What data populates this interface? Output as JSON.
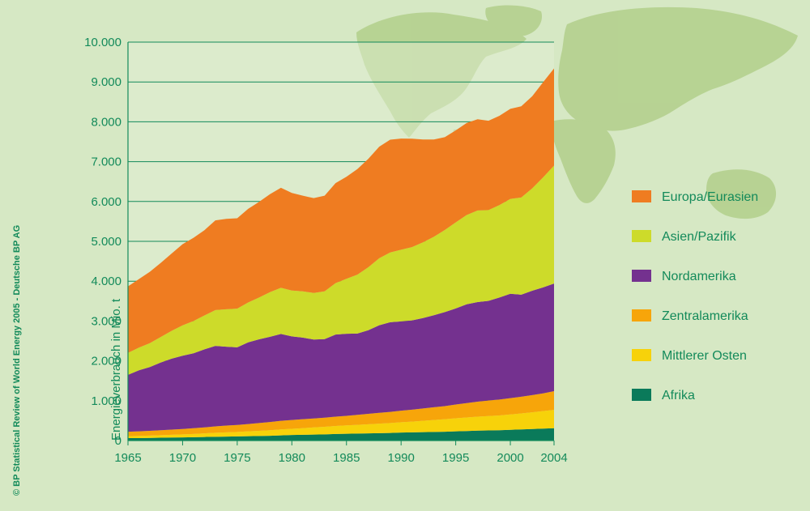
{
  "credit": "© BP Statistical Review of World Energy 2005 - Deutsche BP AG",
  "chart_data": {
    "type": "area",
    "stacked": true,
    "title": "",
    "xlabel": "",
    "ylabel": "Energieverbrauch in Mio. t",
    "xlim": [
      1965,
      2004
    ],
    "ylim": [
      0,
      10000
    ],
    "x_ticks": [
      1965,
      1970,
      1975,
      1980,
      1985,
      1990,
      1995,
      2000,
      2004
    ],
    "x_tick_labels": [
      "1965",
      "1970",
      "1975",
      "1980",
      "1985",
      "1990",
      "1995",
      "2000",
      "2004"
    ],
    "y_ticks": [
      0,
      1000,
      2000,
      3000,
      4000,
      5000,
      6000,
      7000,
      8000,
      9000,
      10000
    ],
    "y_tick_labels": [
      "0",
      "1.000",
      "2.000",
      "3.000",
      "4.000",
      "5.000",
      "6.000",
      "7.000",
      "8.000",
      "9.000",
      "10.000"
    ],
    "grid": "horizontal",
    "legend_position": "right",
    "x": [
      1965,
      1966,
      1967,
      1968,
      1969,
      1970,
      1971,
      1972,
      1973,
      1974,
      1975,
      1976,
      1977,
      1978,
      1979,
      1980,
      1981,
      1982,
      1983,
      1984,
      1985,
      1986,
      1987,
      1988,
      1989,
      1990,
      1991,
      1992,
      1993,
      1994,
      1995,
      1996,
      1997,
      1998,
      1999,
      2000,
      2001,
      2002,
      2003,
      2004
    ],
    "series": [
      {
        "name": "Afrika",
        "color": "#0a7a5a",
        "values": [
          60,
          62,
          65,
          70,
          75,
          80,
          85,
          90,
          95,
          100,
          105,
          110,
          115,
          120,
          130,
          140,
          145,
          150,
          155,
          165,
          170,
          175,
          180,
          185,
          190,
          200,
          205,
          210,
          215,
          220,
          230,
          240,
          250,
          255,
          260,
          270,
          280,
          290,
          300,
          310
        ]
      },
      {
        "name": "Mittlerer Osten",
        "color": "#f7d20a",
        "values": [
          50,
          55,
          60,
          65,
          70,
          75,
          80,
          90,
          100,
          105,
          110,
          120,
          130,
          140,
          150,
          155,
          165,
          180,
          190,
          200,
          210,
          220,
          230,
          240,
          250,
          260,
          270,
          285,
          300,
          315,
          330,
          340,
          350,
          360,
          370,
          385,
          400,
          420,
          440,
          460
        ]
      },
      {
        "name": "Zentralamerika",
        "color": "#f7a50a",
        "values": [
          110,
          115,
          120,
          125,
          130,
          135,
          145,
          150,
          160,
          170,
          175,
          185,
          195,
          205,
          215,
          220,
          225,
          225,
          230,
          235,
          240,
          250,
          260,
          270,
          280,
          290,
          300,
          310,
          320,
          330,
          345,
          360,
          375,
          390,
          400,
          410,
          420,
          430,
          445,
          470
        ]
      },
      {
        "name": "Nordamerika",
        "color": "#74318f",
        "values": [
          1430,
          1530,
          1600,
          1700,
          1780,
          1840,
          1880,
          1960,
          2020,
          1980,
          1950,
          2050,
          2100,
          2140,
          2180,
          2100,
          2050,
          1980,
          1970,
          2060,
          2060,
          2040,
          2100,
          2200,
          2250,
          2240,
          2240,
          2270,
          2310,
          2360,
          2410,
          2480,
          2500,
          2500,
          2560,
          2620,
          2560,
          2620,
          2660,
          2700
        ]
      },
      {
        "name": "Asien/Pazifik",
        "color": "#cddb2a",
        "values": [
          550,
          570,
          600,
          640,
          700,
          760,
          810,
          850,
          900,
          940,
          970,
          1000,
          1050,
          1120,
          1160,
          1150,
          1160,
          1170,
          1200,
          1290,
          1380,
          1480,
          1580,
          1680,
          1750,
          1800,
          1840,
          1900,
          1970,
          2060,
          2160,
          2240,
          2300,
          2280,
          2320,
          2380,
          2440,
          2570,
          2760,
          2960
        ]
      },
      {
        "name": "Europa/Eurasien",
        "color": "#ef7c21",
        "values": [
          1670,
          1720,
          1790,
          1860,
          1940,
          2040,
          2090,
          2140,
          2250,
          2270,
          2270,
          2350,
          2400,
          2460,
          2510,
          2450,
          2400,
          2380,
          2400,
          2510,
          2560,
          2650,
          2720,
          2800,
          2830,
          2790,
          2720,
          2580,
          2440,
          2330,
          2310,
          2310,
          2290,
          2240,
          2240,
          2260,
          2290,
          2310,
          2390,
          2440
        ]
      }
    ],
    "legend_order": [
      "Europa/Eurasien",
      "Asien/Pazifik",
      "Nordamerika",
      "Zentralamerika",
      "Mittlerer Osten",
      "Afrika"
    ]
  }
}
